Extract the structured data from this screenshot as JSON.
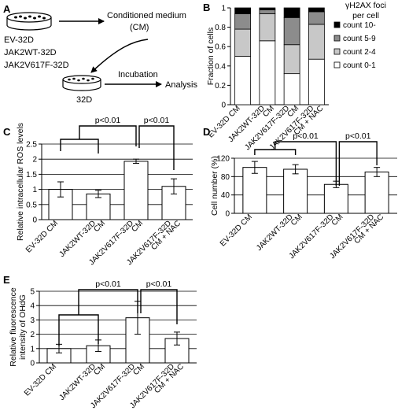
{
  "panels": {
    "A": {
      "letter": "A",
      "dish_labels": [
        "EV-32D",
        "JAK2WT-32D",
        "JAK2V617F-32D"
      ],
      "cm_label_1": "Conditioned medium",
      "cm_label_2": "(CM)",
      "incubation": "Incubation",
      "target_label": "32D",
      "analysis": "Analysis"
    },
    "B": {
      "letter": "B"
    },
    "C": {
      "letter": "C"
    },
    "D": {
      "letter": "D"
    },
    "E": {
      "letter": "E"
    }
  },
  "chart_data": [
    {
      "panel": "B",
      "type": "bar",
      "stacked": true,
      "categories": [
        [
          "EV-32D CM"
        ],
        [
          "JAK2WT-32D",
          "CM"
        ],
        [
          "JAK2V617F-32D",
          "CM"
        ],
        [
          "JAK2V617F-32D",
          "CM + NAC"
        ]
      ],
      "series": [
        {
          "name": "count 0-1",
          "color": "#ffffff",
          "values": [
            0.5,
            0.66,
            0.32,
            0.47
          ]
        },
        {
          "name": "count 2-4",
          "color": "#c8c8c8",
          "values": [
            0.28,
            0.28,
            0.3,
            0.36
          ]
        },
        {
          "name": "count 5-9",
          "color": "#8c8c8c",
          "values": [
            0.16,
            0.04,
            0.28,
            0.13
          ]
        },
        {
          "name": "count 10-",
          "color": "#000000",
          "values": [
            0.06,
            0.02,
            0.1,
            0.04
          ]
        }
      ],
      "ylabel": "Fraction of cells",
      "ylim": [
        0,
        1
      ],
      "yticks": [
        "0",
        "0.2",
        "0.4",
        "0.6",
        "0.8",
        "1"
      ],
      "legend_title_1": "γH2AX foci",
      "legend_title_2": "per cell",
      "legend_position": "right"
    },
    {
      "panel": "C",
      "type": "bar",
      "categories": [
        [
          "EV-32D CM"
        ],
        [
          "JAK2WT-32D",
          "CM"
        ],
        [
          "JAK2V617F-32D",
          "CM"
        ],
        [
          "JAK2V617F-32D",
          "CM + NAC"
        ]
      ],
      "values": [
        1.0,
        0.85,
        1.93,
        1.1
      ],
      "errors": [
        0.25,
        0.12,
        0.07,
        0.25
      ],
      "ylabel": "Relative intracellular ROS levels",
      "ylim": [
        0,
        2.5
      ],
      "yticks": [
        "0",
        "0.5",
        "1",
        "1.5",
        "2",
        "2.5"
      ],
      "annotations": [
        "p<0.01",
        "p<0.01"
      ]
    },
    {
      "panel": "D",
      "type": "bar",
      "categories": [
        [
          "EV-32D CM"
        ],
        [
          "JAK2WT-32D",
          "CM"
        ],
        [
          "JAK2V617F-32D",
          "CM"
        ],
        [
          "JAK2V617F-32D",
          "CM + NAC"
        ]
      ],
      "values": [
        100,
        96,
        63,
        90
      ],
      "errors": [
        13,
        10,
        7,
        10
      ],
      "ylabel": "Cell number (%)",
      "ylim": [
        0,
        120
      ],
      "yticks": [
        "0",
        "40",
        "80",
        "120"
      ],
      "annotations": [
        "p<0.01",
        "p<0.01"
      ]
    },
    {
      "panel": "E",
      "type": "bar",
      "categories": [
        [
          "EV-32D CM"
        ],
        [
          "JAK2WT-32D",
          "CM"
        ],
        [
          "JAK2V617F-32D",
          "CM"
        ],
        [
          "JAK2V617F-32D",
          "CM + NAC"
        ]
      ],
      "values": [
        1.0,
        1.2,
        3.15,
        1.7
      ],
      "errors": [
        0.3,
        0.4,
        1.15,
        0.45
      ],
      "ylabel_1": "Relative fluorescence",
      "ylabel_2": "intensity of OHdG",
      "ylim": [
        0,
        5
      ],
      "yticks": [
        "0",
        "1",
        "2",
        "3",
        "4",
        "5"
      ],
      "annotations": [
        "p<0.01",
        "p<0.01"
      ]
    }
  ]
}
